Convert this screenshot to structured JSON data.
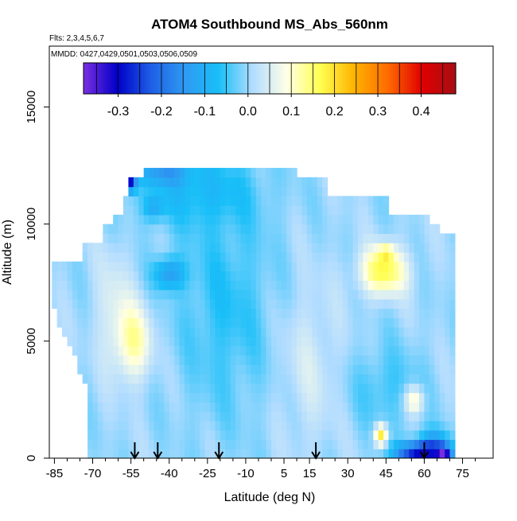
{
  "chart_data": {
    "type": "heatmap",
    "title": "ATOM4 Southbound MS_Abs_560nm",
    "flights_note": "Flts: 2,3,4,5,6,7",
    "dates_note": "MMDD: 0427,0429,0501,0503,0506,0509",
    "xlabel": "Latitude (deg N)",
    "ylabel": "Altitude (m)",
    "x_ticks": [
      -85,
      -70,
      -55,
      -40,
      -25,
      -10,
      5,
      15,
      30,
      45,
      60,
      75
    ],
    "x_minor_ticks": [
      -80,
      -75,
      -65,
      -60,
      -50,
      -45,
      -35,
      -30,
      -20,
      -15,
      -5,
      0,
      10,
      20,
      25,
      35,
      40,
      50,
      55,
      65,
      70,
      80
    ],
    "y_ticks": [
      0,
      5000,
      10000,
      15000
    ],
    "xlim": [
      -87,
      87
    ],
    "ylim": [
      0,
      17600
    ],
    "colorbar": {
      "ticks": [
        -0.3,
        -0.2,
        -0.1,
        0.0,
        0.1,
        0.2,
        0.3,
        0.4
      ],
      "tick_labels": [
        "-0.3",
        "-0.2",
        "-0.1",
        "0.0",
        "0.1",
        "0.2",
        "0.3",
        "0.4"
      ],
      "range": [
        -0.38,
        0.48
      ],
      "colors": [
        "#7b2fe0",
        "#0000c8",
        "#1f5fe6",
        "#2f9af2",
        "#19bff8",
        "#b2dcff",
        "#ffffe6",
        "#ffff50",
        "#ffb300",
        "#ff6a00",
        "#e00000",
        "#a50f15"
      ]
    },
    "profile_markers_lat": [
      -53.5,
      -44.5,
      -20.5,
      17.5,
      60.0
    ],
    "grid": false,
    "legend": "colorbar top"
  }
}
